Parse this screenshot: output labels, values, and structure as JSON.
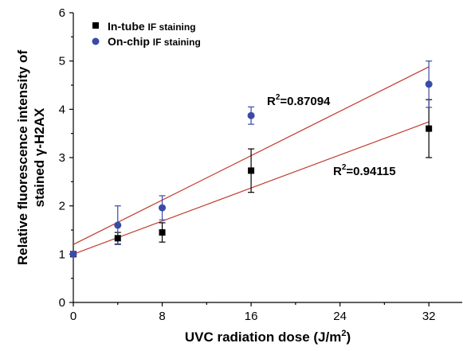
{
  "chart_data": {
    "type": "scatter",
    "xlabel_main": "UVC radiation dose (J/m",
    "xlabel_sup": "2",
    "xlabel_end": ")",
    "ylabel_line1": "Relative fluorescence intensity of",
    "ylabel_line2": "stained γ-H2AX",
    "xlim": [
      0,
      35
    ],
    "ylim": [
      0,
      6
    ],
    "xticks": [
      0,
      8,
      16,
      24,
      32
    ],
    "yticks": [
      0,
      1,
      2,
      3,
      4,
      5,
      6
    ],
    "series": [
      {
        "name_bold": "In-tube",
        "name_rest": "IF staining",
        "marker": "square",
        "color": "#000000",
        "x": [
          0,
          4,
          8,
          16,
          32
        ],
        "y": [
          1.0,
          1.33,
          1.45,
          2.73,
          3.6
        ],
        "err": [
          0.0,
          0.12,
          0.2,
          0.45,
          0.6
        ],
        "fit": {
          "x": [
            0,
            32
          ],
          "y": [
            1.0,
            3.74
          ]
        },
        "r2_label": "0.94115"
      },
      {
        "name_bold": "On-chip",
        "name_rest": "IF staining",
        "marker": "circle",
        "color": "#3a4aa8",
        "x": [
          0,
          4,
          8,
          16,
          32
        ],
        "y": [
          1.0,
          1.6,
          1.96,
          3.87,
          4.52
        ],
        "err": [
          0.0,
          0.4,
          0.25,
          0.18,
          0.48
        ],
        "fit": {
          "x": [
            0,
            32
          ],
          "y": [
            1.2,
            4.88
          ]
        },
        "r2_label": "0.87094"
      }
    ],
    "fit_color": "#c0392b",
    "r2_prefix": "R",
    "r2_sup": "2",
    "r2_eq": "=",
    "legend_position": "top-left"
  }
}
